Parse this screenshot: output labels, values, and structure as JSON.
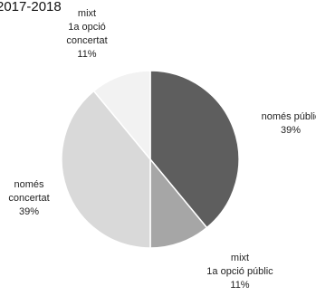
{
  "chart_data": {
    "type": "pie",
    "title": "2017-2018",
    "slices": [
      {
        "label_lines": [
          "només públic",
          "39%"
        ],
        "value": 39,
        "color": "#5e5e5e"
      },
      {
        "label_lines": [
          "mixt",
          "1a opció públic",
          "11%"
        ],
        "value": 11,
        "color": "#a6a6a6"
      },
      {
        "label_lines": [
          "només",
          "concertat",
          "39%"
        ],
        "value": 39,
        "color": "#d9d9d9"
      },
      {
        "label_lines": [
          "mixt",
          "1a opció",
          "concertat",
          "11%"
        ],
        "value": 11,
        "color": "#f2f2f2"
      }
    ],
    "legend": "none"
  }
}
